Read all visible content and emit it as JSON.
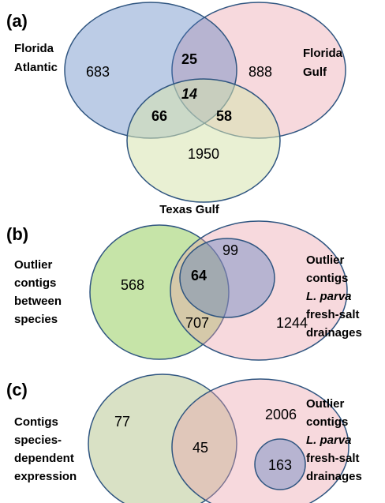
{
  "panels": [
    {
      "label": "(a)",
      "sets": [
        {
          "name": [
            "Florida",
            "Atlantic"
          ]
        },
        {
          "name": [
            "Florida",
            "Gulf"
          ]
        },
        {
          "name": [
            "Texas Gulf"
          ]
        }
      ],
      "counts": {
        "atlantic_only": 683,
        "gulf_only": 888,
        "texas_only": 1950,
        "atlantic_gulf": 25,
        "atlantic_texas": 66,
        "gulf_texas": 58,
        "all": 14
      }
    },
    {
      "label": "(b)",
      "sets": [
        {
          "name": [
            "Outlier",
            "contigs",
            "between",
            "species"
          ]
        },
        {
          "name": [
            "Outlier",
            "contigs",
            "L. parva",
            "fresh-salt",
            "drainages"
          ]
        }
      ],
      "counts": {
        "between_only": 568,
        "inner_only": 99,
        "inner_between": 64,
        "shared": 707,
        "drainage_only": 1244
      }
    },
    {
      "label": "(c)",
      "sets": [
        {
          "name": [
            "Contigs",
            "species-",
            "dependent",
            "expression"
          ]
        },
        {
          "name": [
            "Outlier",
            "contigs",
            "L. parva",
            "fresh-salt",
            "drainages"
          ]
        }
      ],
      "counts": {
        "expression_only": 77,
        "shared": 45,
        "drainage_only": 2006,
        "inner": 163
      }
    }
  ]
}
